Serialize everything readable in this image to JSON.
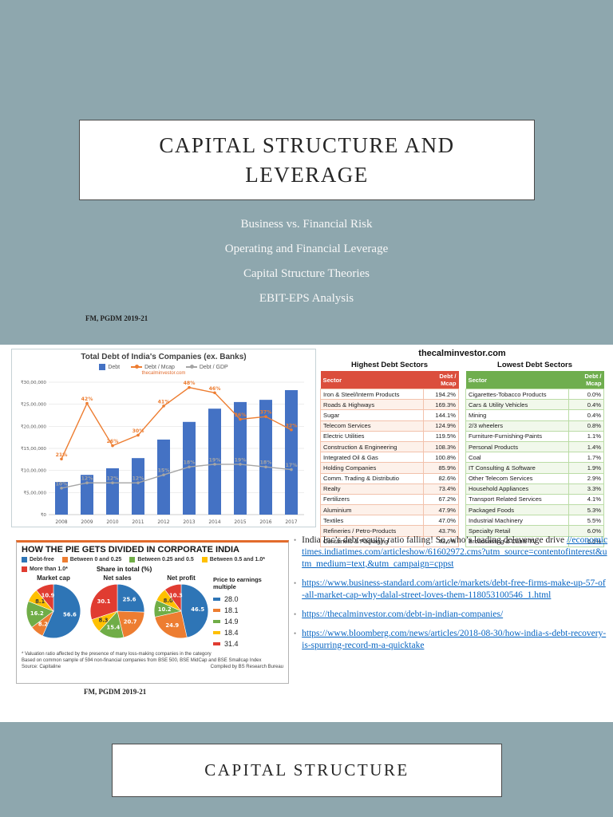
{
  "slide_top": {
    "bg": "#8EA7AE",
    "title": "CAPITAL STRUCTURE AND LEVERAGE",
    "subtitles": [
      "Business vs. Financial Risk",
      "Operating and Financial Leverage",
      "Capital Structure Theories",
      "EBIT-EPS Analysis"
    ],
    "footnote": "FM, PGDM 2019-21"
  },
  "chart_data": [
    {
      "type": "bar",
      "title": "Total Debt of India's Companies (ex. Banks)",
      "watermark": "thecalminvestor.com",
      "categories": [
        "2008",
        "2009",
        "2010",
        "2011",
        "2012",
        "2013",
        "2014",
        "2015",
        "2016",
        "2017"
      ],
      "series": [
        {
          "name": "Debt",
          "kind": "bar",
          "color": "#4472C4",
          "values": [
            740000,
            900000,
            1050000,
            1280000,
            1700000,
            2100000,
            2400000,
            2550000,
            2600000,
            2820000
          ]
        },
        {
          "name": "Debt / Mcap",
          "kind": "line",
          "color": "#ED7D31",
          "unit": "%",
          "values": [
            21,
            42,
            26,
            30,
            41,
            48,
            46,
            36,
            37,
            32
          ]
        },
        {
          "name": "Debt / GDP",
          "kind": "line",
          "color": "#A5A5A5",
          "unit": "%",
          "values": [
            10,
            12,
            12,
            12,
            15,
            18,
            19,
            19,
            18,
            17
          ]
        }
      ],
      "ylim": [
        0,
        3000000
      ],
      "y_tick_step": 500000,
      "y_tick_labels": [
        "₹0",
        "₹5,00,000",
        "₹10,00,000",
        "₹15,00,000",
        "₹20,00,000",
        "₹25,00,000",
        "₹30,00,000"
      ],
      "pct_axis_max": 50,
      "grid": true,
      "legend_position": "top"
    },
    {
      "type": "pie",
      "title": "HOW THE PIE GETS DIVIDED IN CORPORATE INDIA",
      "subtitle": "Share in total (%)",
      "legend": [
        {
          "label": "Debt-free",
          "color": "#2E75B6"
        },
        {
          "label": "Between 0 and 0.25",
          "color": "#ED7D31"
        },
        {
          "label": "Between 0.25 and 0.5",
          "color": "#70AD47"
        },
        {
          "label": "Between 0.5 and 1.0*",
          "color": "#FFC000"
        },
        {
          "label": "More than 1.0*",
          "color": "#E03C31"
        }
      ],
      "pies": [
        {
          "label": "Market cap",
          "values": [
            56.6,
            8.2,
            16.2,
            8.1,
            10.9
          ]
        },
        {
          "label": "Net sales",
          "values": [
            25.6,
            20.7,
            15.4,
            8.3,
            30.1
          ]
        },
        {
          "label": "Net profit",
          "values": [
            46.5,
            24.9,
            10.2,
            8.0,
            10.3
          ]
        }
      ],
      "pe": {
        "title": "Price to earnings multiple",
        "values": [
          28.0,
          18.1,
          14.9,
          18.4,
          31.4
        ]
      },
      "footnote1": "* Valuation ratio affected by the presence of many loss-making companies in the category",
      "footnote2": "Based on common sample of 594 non-financial companies from BSE 500, BSE MidCap and BSE Smallcap Index",
      "source": "Source: Capitaline",
      "compiled": "Compiled by BS Research Bureau"
    }
  ],
  "tables": {
    "site": "thecalminvestor.com",
    "highest": {
      "title": "Highest Debt Sectors",
      "headers": [
        "Sector",
        "Debt / Mcap"
      ],
      "header_color": "#DB4E3C",
      "rows": [
        [
          "Iron & Steel/Interm Products",
          "194.2%"
        ],
        [
          "Roads & Highways",
          "169.3%"
        ],
        [
          "Sugar",
          "144.1%"
        ],
        [
          "Telecom Services",
          "124.9%"
        ],
        [
          "Electric Utilities",
          "119.5%"
        ],
        [
          "Construction & Engineering",
          "108.3%"
        ],
        [
          "Integrated Oil & Gas",
          "100.8%"
        ],
        [
          "Holding Companies",
          "85.9%"
        ],
        [
          "Comm. Trading & Distributio",
          "82.6%"
        ],
        [
          "Realty",
          "73.4%"
        ],
        [
          "Fertilizers",
          "67.2%"
        ],
        [
          "Aluminium",
          "47.9%"
        ],
        [
          "Textiles",
          "47.0%"
        ],
        [
          "Refineries / Petro-Products",
          "43.7%"
        ],
        [
          "Containers & Packaging",
          "43.6%"
        ]
      ]
    },
    "lowest": {
      "title": "Lowest Debt Sectors",
      "headers": [
        "Sector",
        "Debt / Mcap"
      ],
      "header_color": "#6FAE4E",
      "rows": [
        [
          "Cigarettes-Tobacco Products",
          "0.0%"
        ],
        [
          "Cars & Utility Vehicles",
          "0.4%"
        ],
        [
          "Mining",
          "0.4%"
        ],
        [
          "2/3 wheelers",
          "0.8%"
        ],
        [
          "Furniture-Furnishing-Paints",
          "1.1%"
        ],
        [
          "Personal Products",
          "1.4%"
        ],
        [
          "Coal",
          "1.7%"
        ],
        [
          "IT Consulting & Software",
          "1.9%"
        ],
        [
          "Other Telecom Services",
          "2.9%"
        ],
        [
          "Household Appliances",
          "3.3%"
        ],
        [
          "Transport Related Services",
          "4.1%"
        ],
        [
          "Packaged Foods",
          "5.3%"
        ],
        [
          "Industrial Machinery",
          "5.5%"
        ],
        [
          "Specialty Retail",
          "6.0%"
        ],
        [
          "Broadcasting & Cable TV",
          "6.5%"
        ]
      ]
    }
  },
  "bullets": [
    {
      "text": "India Inc’s debt-equity ratio falling! So, who’s leading deleverage drive ",
      "link": "//economictimes.indiatimes.com/articleshow/61602972.cms?utm_source=contentofinterest&utm_medium=text,&utm_campaign=cppst"
    },
    {
      "text": "",
      "link": "https://www.business-standard.com/article/markets/debt-free-firms-make-up-57-of-all-market-cap-why-dalal-street-loves-them-118053100546_1.html"
    },
    {
      "text": "",
      "link": "https://thecalminvestor.com/debt-in-indian-companies/"
    },
    {
      "text": "",
      "link": "https://www.bloomberg.com/news/articles/2018-08-30/how-india-s-debt-recovery-is-spurring-record-m-a-quicktake"
    }
  ],
  "footer2": "FM, PGDM 2019-21",
  "slide_bottom": {
    "title": "CAPITAL STRUCTURE"
  }
}
